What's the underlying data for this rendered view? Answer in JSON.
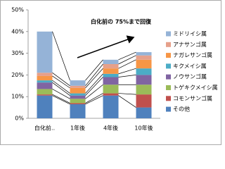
{
  "chart_data": {
    "type": "stacked-bar",
    "annotation": "白化前の 75%まで回復",
    "categories": [
      "白化前‥",
      "1年後",
      "4年後",
      "10年後"
    ],
    "ylim": [
      0,
      50
    ],
    "yticks": [
      {
        "value": 0,
        "label": "0%"
      },
      {
        "value": 10,
        "label": "10%"
      },
      {
        "value": 20,
        "label": "20%"
      },
      {
        "value": 30,
        "label": "30%"
      },
      {
        "value": 40,
        "label": "40%"
      },
      {
        "value": 50,
        "label": "50%"
      }
    ],
    "series": [
      {
        "name": "その他",
        "color": "#4f81bd",
        "values": [
          10.5,
          6.5,
          10.5,
          5
        ]
      },
      {
        "name": "コモンサンゴ属",
        "color": "#c0504d",
        "values": [
          0.5,
          0.5,
          1,
          6
        ]
      },
      {
        "name": "トゲキクメイシ属",
        "color": "#9bbb59",
        "values": [
          2.5,
          2,
          4,
          4.5
        ]
      },
      {
        "name": "ノウサンゴ属",
        "color": "#8064a2",
        "values": [
          3,
          1.5,
          3.5,
          4.5
        ]
      },
      {
        "name": "キクメイシ属",
        "color": "#4bacc6",
        "values": [
          1,
          1,
          1.5,
          3
        ]
      },
      {
        "name": "ナガレサンゴ属",
        "color": "#f79646",
        "values": [
          2,
          2.5,
          2.5,
          4
        ]
      },
      {
        "name": "アナサンゴ属",
        "color": "#e6a08a",
        "values": [
          1.5,
          1,
          2,
          2
        ]
      },
      {
        "name": "ミドリイシ属",
        "color": "#95b3d7",
        "values": [
          19,
          2.5,
          2,
          1.5
        ]
      }
    ]
  }
}
